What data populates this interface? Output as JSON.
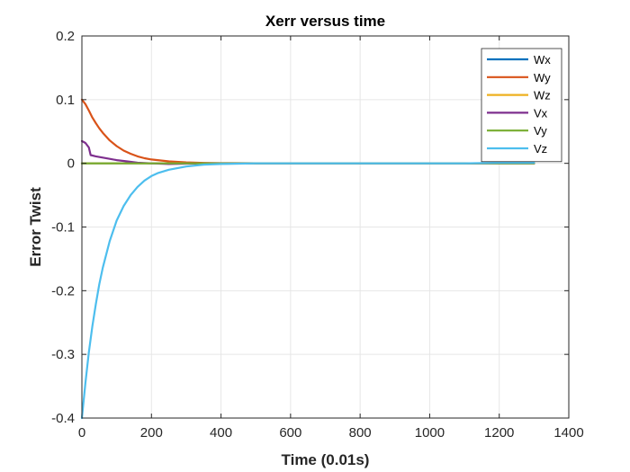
{
  "chart_data": {
    "type": "line",
    "title": "Xerr versus time",
    "xlabel": "Time (0.01s)",
    "ylabel": "Error Twist",
    "xlim": [
      0,
      1400
    ],
    "ylim": [
      -0.4,
      0.2
    ],
    "xticks": [
      0,
      200,
      400,
      600,
      800,
      1000,
      1200,
      1400
    ],
    "yticks": [
      -0.4,
      -0.3,
      -0.2,
      -0.1,
      0,
      0.1,
      0.2
    ],
    "xtick_labels": [
      "0",
      "200",
      "400",
      "600",
      "800",
      "1000",
      "1200",
      "1400"
    ],
    "ytick_labels": [
      "-0.4",
      "-0.3",
      "-0.2",
      "-0.1",
      "0",
      "0.1",
      "0.2"
    ],
    "grid": true,
    "legend_position": "top-right",
    "series": [
      {
        "name": "Wx",
        "color": "#0072BD",
        "x": [
          0,
          100,
          200,
          300,
          400,
          500,
          600,
          700,
          800,
          900,
          1000,
          1100,
          1200,
          1300
        ],
        "y": [
          0,
          0,
          0,
          0,
          0,
          0,
          0,
          0,
          0,
          0,
          0,
          0,
          0,
          0
        ]
      },
      {
        "name": "Wy",
        "color": "#D95319",
        "x": [
          0,
          10,
          20,
          30,
          40,
          50,
          60,
          80,
          100,
          120,
          140,
          160,
          180,
          200,
          250,
          300,
          350,
          400,
          500,
          600,
          800,
          1000,
          1200,
          1300
        ],
        "y": [
          0.1,
          0.093,
          0.083,
          0.072,
          0.063,
          0.055,
          0.048,
          0.036,
          0.027,
          0.02,
          0.015,
          0.011,
          0.008,
          0.006,
          0.003,
          0.0015,
          0.0007,
          0.0003,
          0.0001,
          0,
          0,
          0,
          0,
          0
        ]
      },
      {
        "name": "Wz",
        "color": "#EDB120",
        "x": [
          0,
          100,
          200,
          300,
          400,
          500,
          600,
          700,
          800,
          900,
          1000,
          1100,
          1200,
          1300
        ],
        "y": [
          0,
          0,
          0,
          0,
          0,
          0,
          0,
          0,
          0,
          0,
          0,
          0,
          0,
          0
        ]
      },
      {
        "name": "Vx",
        "color": "#7E2F8E",
        "x": [
          0,
          10,
          20,
          25,
          40,
          60,
          80,
          100,
          130,
          160,
          200,
          250,
          300,
          400,
          500,
          600,
          800,
          1000,
          1200,
          1300
        ],
        "y": [
          0.035,
          0.032,
          0.025,
          0.013,
          0.011,
          0.009,
          0.007,
          0.005,
          0.003,
          0.001,
          0,
          -0.001,
          -0.0005,
          0,
          0,
          0,
          0,
          0,
          0,
          0
        ]
      },
      {
        "name": "Vy",
        "color": "#77AC30",
        "x": [
          0,
          100,
          200,
          300,
          400,
          500,
          600,
          700,
          800,
          900,
          1000,
          1100,
          1200,
          1300
        ],
        "y": [
          0,
          0,
          0,
          0,
          0,
          0,
          0,
          0,
          0,
          0,
          0,
          0,
          0,
          0
        ]
      },
      {
        "name": "Vz",
        "color": "#4DBEEE",
        "x": [
          0,
          10,
          20,
          30,
          40,
          50,
          60,
          80,
          100,
          120,
          140,
          160,
          180,
          200,
          220,
          250,
          300,
          350,
          400,
          500,
          600,
          700,
          800,
          900,
          1000,
          1100,
          1200,
          1300
        ],
        "y": [
          -0.4,
          -0.345,
          -0.297,
          -0.256,
          -0.221,
          -0.19,
          -0.164,
          -0.122,
          -0.09,
          -0.067,
          -0.05,
          -0.037,
          -0.027,
          -0.02,
          -0.015,
          -0.01,
          -0.005,
          -0.002,
          -0.001,
          0,
          0,
          0,
          0,
          0,
          0,
          0,
          0.001,
          0.001
        ]
      }
    ]
  }
}
